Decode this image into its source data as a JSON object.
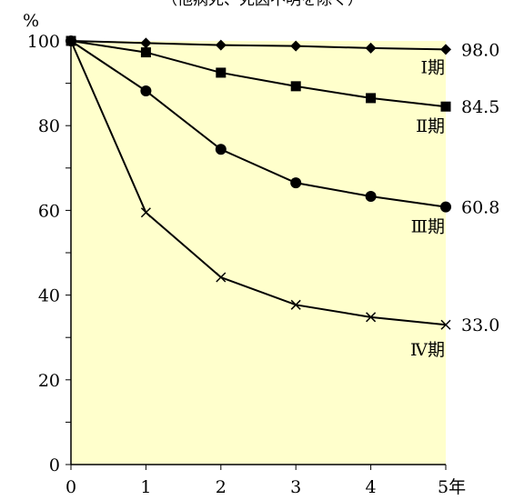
{
  "chart_data": {
    "type": "line",
    "top_note": "（他病死、死因不明を除く）",
    "ylabel": "%",
    "x": [
      0,
      1,
      2,
      3,
      4,
      5
    ],
    "x_tick_labels": [
      "0",
      "1",
      "2",
      "3",
      "4",
      "5年"
    ],
    "y_ticks": [
      0,
      20,
      40,
      60,
      80,
      100
    ],
    "ylim": [
      0,
      100
    ],
    "xlim": [
      0,
      5
    ],
    "background": "#ffffcc",
    "line_color": "#000000",
    "grid": false,
    "series": [
      {
        "name": "Ⅰ期",
        "marker": "diamond",
        "values": [
          100,
          99.5,
          99.0,
          98.8,
          98.3,
          98.0
        ],
        "end_label": "98.0"
      },
      {
        "name": "Ⅱ期",
        "marker": "square",
        "values": [
          100,
          97.3,
          92.5,
          89.3,
          86.5,
          84.5
        ],
        "end_label": "84.5"
      },
      {
        "name": "Ⅲ期",
        "marker": "circle",
        "values": [
          100,
          88.2,
          74.4,
          66.5,
          63.3,
          60.8
        ],
        "end_label": "60.8"
      },
      {
        "name": "Ⅳ期",
        "marker": "x",
        "values": [
          100,
          59.5,
          44.2,
          37.7,
          34.8,
          33.0
        ],
        "end_label": "33.0"
      }
    ]
  }
}
